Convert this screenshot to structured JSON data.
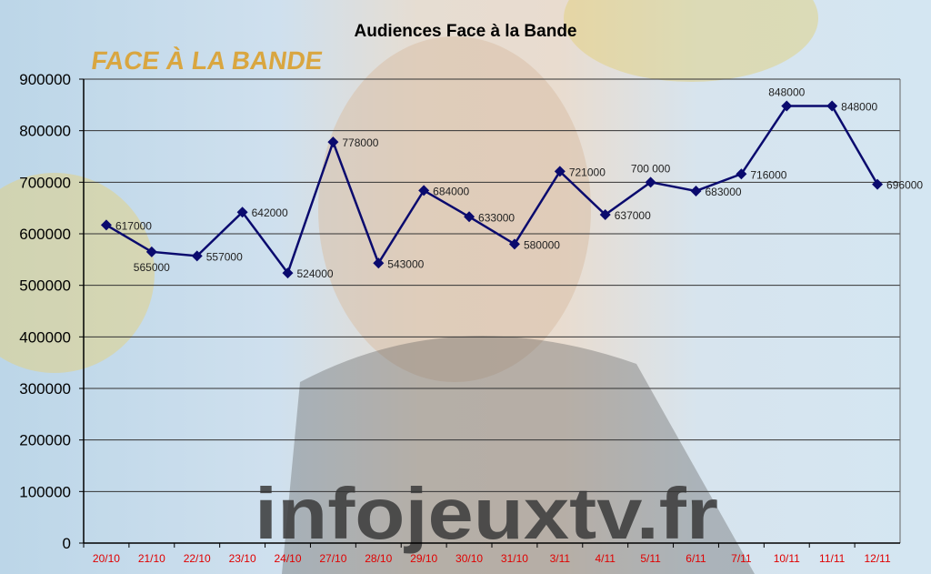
{
  "chart_data": {
    "type": "line",
    "title": "Audiences Face à la Bande",
    "xlabel": "",
    "ylabel": "",
    "categories": [
      "20/10",
      "21/10",
      "22/10",
      "23/10",
      "24/10",
      "27/10",
      "28/10",
      "29/10",
      "30/10",
      "31/10",
      "3/11",
      "4/11",
      "5/11",
      "6/11",
      "7/11",
      "10/11",
      "11/11",
      "12/11"
    ],
    "values": [
      617000,
      565000,
      557000,
      642000,
      524000,
      778000,
      543000,
      684000,
      633000,
      580000,
      721000,
      637000,
      700000,
      683000,
      716000,
      848000,
      848000,
      696000
    ],
    "data_labels": [
      "617000",
      "565000",
      "557000",
      "642000",
      "524000",
      "778000",
      "543000",
      "684000",
      "633000",
      "580000",
      "721000",
      "637000",
      "700 000",
      "683000",
      "716000",
      "848000",
      "848000",
      "696000"
    ],
    "ylim": [
      0,
      900000
    ],
    "yticks": [
      "0",
      "100000",
      "200000",
      "300000",
      "400000",
      "500000",
      "600000",
      "700000",
      "800000",
      "900000"
    ],
    "grid": true,
    "legend": "none",
    "colors": {
      "line": "#0a0a6e",
      "marker": "#0a0a6e",
      "xtick": "#e00000",
      "grid": "#333333"
    }
  },
  "watermark": {
    "text": "infojeuxtv.fr"
  },
  "logo": {
    "text": "FACE À LA BANDE"
  }
}
